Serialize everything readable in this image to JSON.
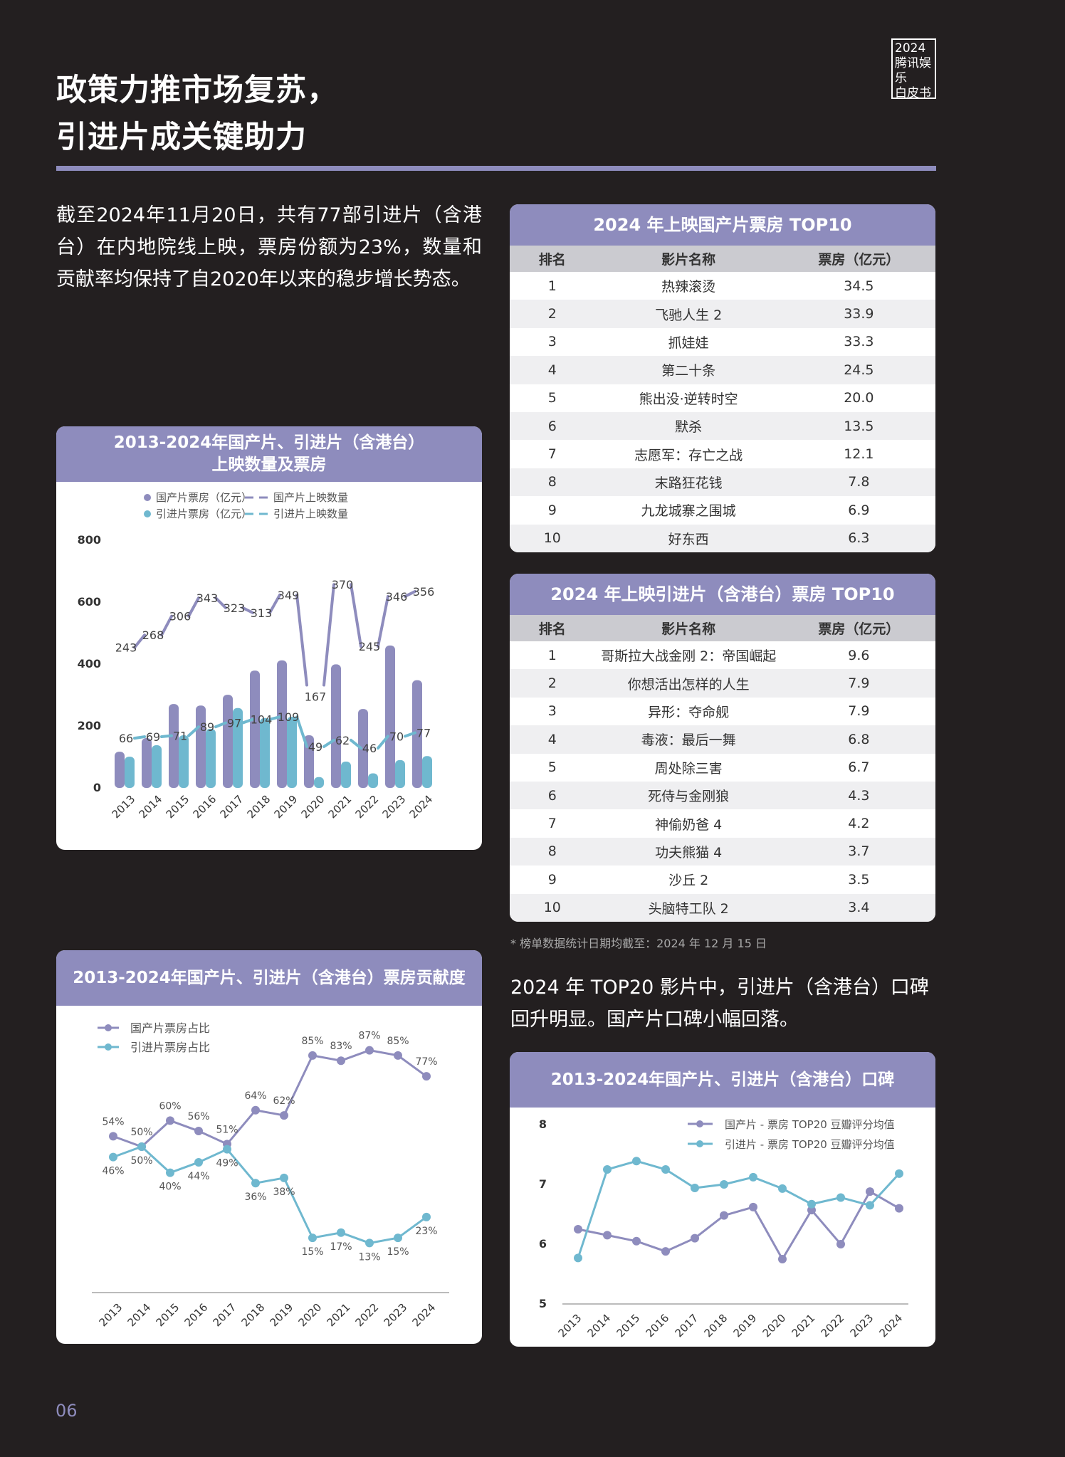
{
  "page": {
    "title_line1": "政策力推市场复苏，",
    "title_line2": "引进片成关键助力",
    "brand_line1": "2024",
    "brand_line2": "腾讯娱乐",
    "brand_line3": "白皮书",
    "intro": "截至2024年11月20日，共有77部引进片（含港台）在内地院线上映，票房份额为23%，数量和贡献率均保持了自2020年以来的稳步增长势态。",
    "note": "* 榜单数据统计日期均截至：2024 年 12 月 15 日",
    "subtext": "2024 年 TOP20 影片中，引进片（含港台）口碑回升明显。国产片口碑小幅回落。",
    "page_number": "06"
  },
  "colors": {
    "domestic": "#8e8cbd",
    "imported": "#6fb8cf",
    "header": "#8e8cbd",
    "background": "#231f20"
  },
  "domestic_table": {
    "title": "2024 年上映国产片票房 TOP10",
    "headers": [
      "排名",
      "影片名称",
      "票房（亿元）"
    ],
    "rows": [
      [
        "1",
        "热辣滚烫",
        "34.5"
      ],
      [
        "2",
        "飞驰人生 2",
        "33.9"
      ],
      [
        "3",
        "抓娃娃",
        "33.3"
      ],
      [
        "4",
        "第二十条",
        "24.5"
      ],
      [
        "5",
        "熊出没·逆转时空",
        "20.0"
      ],
      [
        "6",
        "默杀",
        "13.5"
      ],
      [
        "7",
        "志愿军：存亡之战",
        "12.1"
      ],
      [
        "8",
        "末路狂花钱",
        "7.8"
      ],
      [
        "9",
        "九龙城寨之围城",
        "6.9"
      ],
      [
        "10",
        "好东西",
        "6.3"
      ]
    ]
  },
  "imported_table": {
    "title": "2024 年上映引进片（含港台）票房 TOP10",
    "headers": [
      "排名",
      "影片名称",
      "票房（亿元）"
    ],
    "rows": [
      [
        "1",
        "哥斯拉大战金刚 2：帝国崛起",
        "9.6"
      ],
      [
        "2",
        "你想活出怎样的人生",
        "7.9"
      ],
      [
        "3",
        "异形：夺命舰",
        "7.9"
      ],
      [
        "4",
        "毒液：最后一舞",
        "6.8"
      ],
      [
        "5",
        "周处除三害",
        "6.7"
      ],
      [
        "6",
        "死侍与金刚狼",
        "4.3"
      ],
      [
        "7",
        "神偷奶爸 4",
        "4.2"
      ],
      [
        "8",
        "功夫熊猫 4",
        "3.7"
      ],
      [
        "9",
        "沙丘 2",
        "3.5"
      ],
      [
        "10",
        "头脑特工队 2",
        "3.4"
      ]
    ]
  },
  "chart_data": [
    {
      "type": "bar",
      "title": "2013-2024年国产片、引进片（含港台）",
      "subtitle": "上映数量及票房",
      "categories": [
        "2013",
        "2014",
        "2015",
        "2016",
        "2017",
        "2018",
        "2019",
        "2020",
        "2021",
        "2022",
        "2023",
        "2024"
      ],
      "ylim": [
        0,
        800
      ],
      "yticks": [
        0,
        200,
        400,
        600,
        800
      ],
      "legend": "top",
      "series": [
        {
          "name": "国产片票房（亿元）",
          "kind": "bar",
          "values": [
            117,
            161,
            271,
            266,
            301,
            379,
            412,
            170,
            399,
            255,
            460,
            348
          ]
        },
        {
          "name": "引进片票房（亿元）",
          "kind": "bar",
          "values": [
            101,
            138,
            170,
            191,
            258,
            226,
            230,
            35,
            85,
            47,
            90,
            103
          ]
        },
        {
          "name": "国产片上映数量",
          "kind": "line",
          "values": [
            243,
            268,
            306,
            343,
            323,
            313,
            349,
            167,
            370,
            245,
            346,
            356
          ]
        },
        {
          "name": "引进片上映数量",
          "kind": "line",
          "values": [
            66,
            69,
            71,
            89,
            97,
            104,
            109,
            49,
            62,
            46,
            70,
            77
          ]
        }
      ]
    },
    {
      "type": "line",
      "title": "2013-2024年国产片、引进片（含港台）票房贡献度",
      "categories": [
        "2013",
        "2014",
        "2015",
        "2016",
        "2017",
        "2018",
        "2019",
        "2020",
        "2021",
        "2022",
        "2023",
        "2024"
      ],
      "legend": "top-left",
      "series": [
        {
          "name": "国产片票房占比",
          "values": [
            54,
            50,
            60,
            56,
            51,
            64,
            62,
            85,
            83,
            87,
            85,
            77
          ]
        },
        {
          "name": "引进片票房占比",
          "values": [
            46,
            50,
            40,
            44,
            49,
            36,
            38,
            15,
            17,
            13,
            15,
            23
          ]
        }
      ]
    },
    {
      "type": "line",
      "title": "2013-2024年国产片、引进片（含港台）口碑",
      "categories": [
        "2013",
        "2014",
        "2015",
        "2016",
        "2017",
        "2018",
        "2019",
        "2020",
        "2021",
        "2022",
        "2023",
        "2024"
      ],
      "ylim": [
        5,
        8
      ],
      "yticks": [
        5,
        6,
        7,
        8
      ],
      "legend": "top-right",
      "series": [
        {
          "name": "国产片 - 票房 TOP20 豆瓣评分均值",
          "values": [
            6.25,
            6.15,
            6.05,
            5.88,
            6.1,
            6.48,
            6.62,
            5.75,
            6.57,
            6.0,
            6.88,
            6.6
          ]
        },
        {
          "name": "引进片 - 票房 TOP20 豆瓣评分均值",
          "values": [
            5.77,
            7.25,
            7.39,
            7.25,
            6.94,
            7.0,
            7.12,
            6.93,
            6.67,
            6.78,
            6.65,
            7.18
          ]
        }
      ]
    }
  ]
}
